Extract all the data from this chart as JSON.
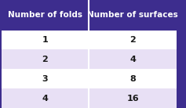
{
  "col_headers": [
    "Number of folds",
    "Number of surfaces"
  ],
  "rows": [
    [
      "1",
      "2"
    ],
    [
      "2",
      "4"
    ],
    [
      "3",
      "8"
    ],
    [
      "4",
      "16"
    ]
  ],
  "header_bg": "#3d2d8e",
  "header_text_color": "#ffffff",
  "row_bg_odd": "#ffffff",
  "row_bg_even": "#e8e0f5",
  "row_text_color": "#1a1a1a",
  "divider_color": "#ffffff",
  "figsize": [
    2.37,
    1.38
  ],
  "dpi": 100
}
